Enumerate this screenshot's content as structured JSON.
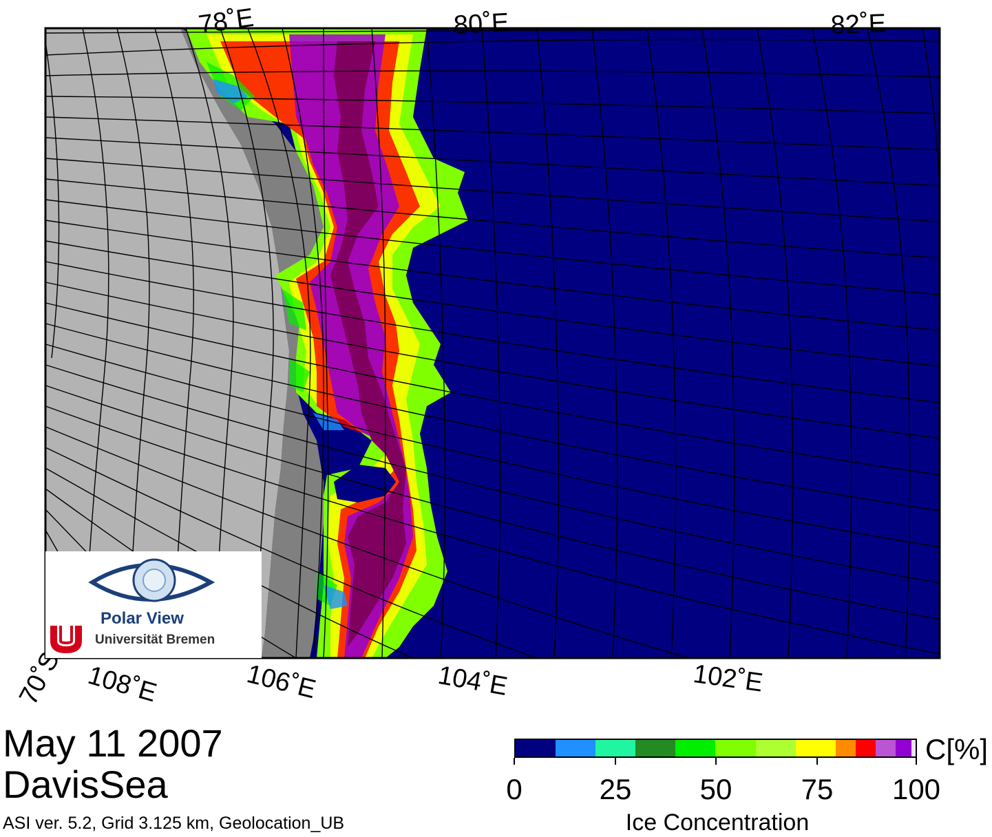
{
  "map": {
    "top_labels": [
      "78˚E",
      "80˚E",
      "82˚E"
    ],
    "bottom_labels": [
      "70˚S",
      "108˚E",
      "106˚E",
      "104˚E",
      "102˚E"
    ],
    "colors": {
      "ocean": "#000080",
      "land": "#b3b3b3",
      "ice_shelf": "#808080",
      "graticule": "#000000"
    }
  },
  "logo": {
    "title": "Polar View",
    "university": "Universität Bremen"
  },
  "caption": {
    "date": "May 11 2007",
    "region": "DavisSea",
    "info": "ASI ver. 5.2,  Grid 3.125 km, Geolocation_UB"
  },
  "colorbar": {
    "unit": "C[%]",
    "title": "Ice Concentration",
    "ticks": [
      "0",
      "25",
      "50",
      "75",
      "100"
    ],
    "colors": [
      "#000080",
      "#1e90ff",
      "#20f5a0",
      "#228b22",
      "#00ee00",
      "#7fff00",
      "#adff2f",
      "#ffff00",
      "#ff8c00",
      "#ff0000",
      "#ba55d3",
      "#9400d3",
      "#f0e0ff"
    ]
  }
}
